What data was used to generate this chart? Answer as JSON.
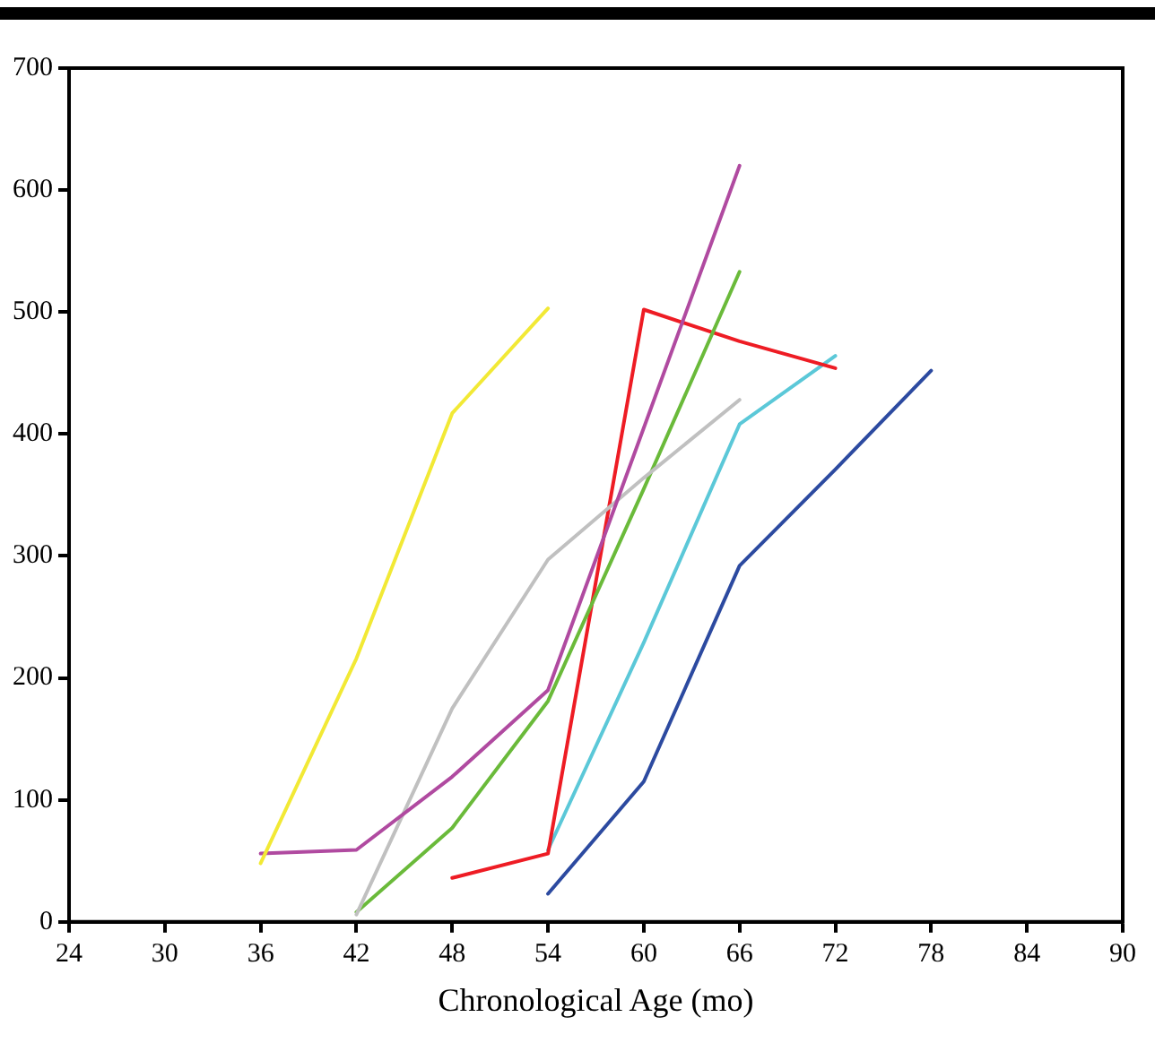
{
  "chart_data": {
    "type": "line",
    "xlabel": "Chronological Age (mo)",
    "xlim": [
      24,
      90
    ],
    "xticks": [
      24,
      30,
      36,
      42,
      48,
      54,
      60,
      66,
      72,
      78,
      84,
      90
    ],
    "ylim": [
      0,
      700
    ],
    "yticks": [
      0,
      100,
      200,
      300,
      400,
      500,
      600,
      700
    ],
    "grid": false,
    "legend": false,
    "marker": "none",
    "line_style": "solid",
    "series": [
      {
        "color": "#f2e935",
        "x": [
          36,
          42,
          48,
          54
        ],
        "values": [
          48,
          216,
          417,
          503
        ]
      },
      {
        "color": "#b04aa0",
        "x": [
          36,
          42,
          48,
          54,
          66
        ],
        "values": [
          56,
          59,
          119,
          190,
          620
        ]
      },
      {
        "color": "#c0c0c0",
        "x": [
          42,
          48,
          54,
          60,
          66
        ],
        "values": [
          6,
          175,
          297,
          364,
          428
        ]
      },
      {
        "color": "#6aba3a",
        "x": [
          42,
          48,
          54,
          60,
          66
        ],
        "values": [
          8,
          77,
          181,
          355,
          533
        ]
      },
      {
        "color": "#ee1c24",
        "x": [
          48,
          54,
          60,
          66,
          72
        ],
        "values": [
          36,
          56,
          502,
          476,
          454
        ]
      },
      {
        "color": "#5bc8d8",
        "x": [
          54,
          60,
          66,
          72
        ],
        "values": [
          59,
          229,
          408,
          464
        ]
      },
      {
        "color": "#2c4aa0",
        "x": [
          54,
          60,
          66,
          72,
          78
        ],
        "values": [
          23,
          115,
          292,
          371,
          452
        ]
      }
    ]
  }
}
